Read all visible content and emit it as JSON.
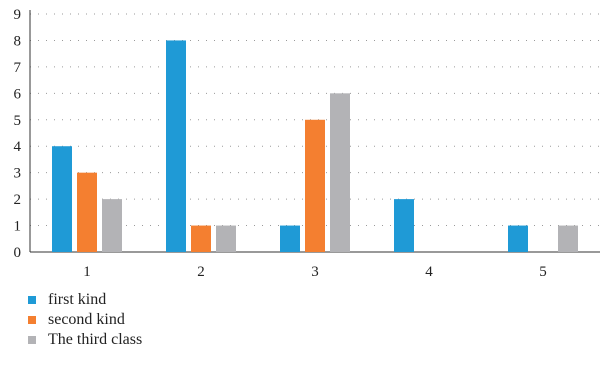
{
  "chart_data": {
    "type": "bar",
    "title": "",
    "xlabel": "",
    "ylabel": "",
    "categories": [
      "1",
      "2",
      "3",
      "4",
      "5"
    ],
    "ylim": [
      0,
      9
    ],
    "yticks": [
      0,
      1,
      2,
      3,
      4,
      5,
      6,
      7,
      8,
      9
    ],
    "grid": "dotted horizontal",
    "legend_position": "bottom-left",
    "series": [
      {
        "name": "first kind",
        "color": "#1f9ad6",
        "values": [
          4,
          8,
          1,
          2,
          1
        ]
      },
      {
        "name": "second kind",
        "color": "#f47f30",
        "values": [
          3,
          1,
          5,
          0,
          0
        ]
      },
      {
        "name": "The third class",
        "color": "#b3b3b6",
        "values": [
          2,
          1,
          6,
          0,
          1
        ]
      }
    ]
  }
}
